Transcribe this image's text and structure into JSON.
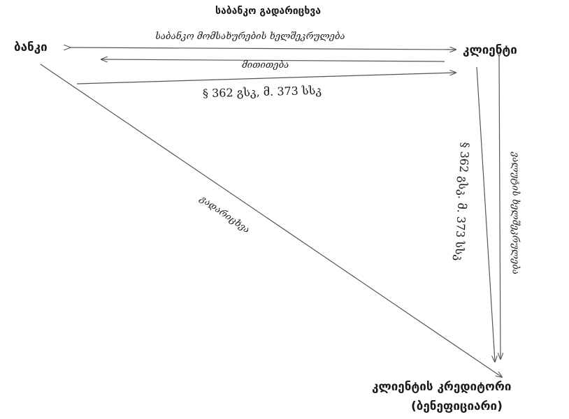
{
  "title": "საბანკო გადარიცხვა",
  "nodes": {
    "bank": "ბანკი",
    "client": "კლიენტი",
    "creditor_line1": "კლიენტის კრედიტორი",
    "creditor_line2": "(ბენეფიციარი)"
  },
  "edges": {
    "service_agreement": "საბანკო მომსახურების ხელშეკრულება",
    "instruction": "მითითება",
    "bank_client_law": "§ 362 გსკ, მ. 373 სსკ",
    "transfer": "გადარიცხვა",
    "client_creditor_law": "§ 362 გსკ. მ. 373 სსკ",
    "valuta_agreement": "ვალუტის ხელშეკრულება"
  }
}
